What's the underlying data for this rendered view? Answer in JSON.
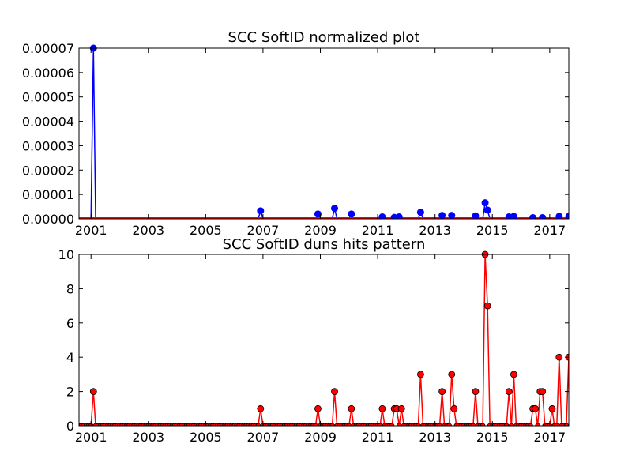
{
  "chart_data": [
    {
      "type": "line",
      "title": "SCC SoftID normalized plot",
      "xlabel": "",
      "ylabel": "",
      "x_axis": "date",
      "xlim": [
        "2000-08-01",
        "2017-09-01"
      ],
      "ylim": [
        0,
        7e-05
      ],
      "xticks": [
        "2001",
        "2003",
        "2005",
        "2007",
        "2009",
        "2011",
        "2013",
        "2015",
        "2017"
      ],
      "yticks": [
        "0.00000",
        "0.00001",
        "0.00002",
        "0.00003",
        "0.00004",
        "0.00005",
        "0.00006",
        "0.00007"
      ],
      "grid": false,
      "colors": {
        "line": "#0000ff",
        "marker": "#0000ff",
        "baseline": "#ff0000"
      },
      "series": [
        {
          "values": [
            {
              "x": "2001-02-01",
              "y": 7e-05
            },
            {
              "x": "2006-12-01",
              "y": 3.3e-06
            },
            {
              "x": "2008-12-01",
              "y": 2e-06
            },
            {
              "x": "2009-07-01",
              "y": 4.3e-06
            },
            {
              "x": "2010-02-01",
              "y": 2e-06
            },
            {
              "x": "2011-03-01",
              "y": 8e-07
            },
            {
              "x": "2011-08-01",
              "y": 6e-07
            },
            {
              "x": "2011-10-01",
              "y": 8e-07
            },
            {
              "x": "2012-07-01",
              "y": 2.7e-06
            },
            {
              "x": "2013-04-01",
              "y": 1.4e-06
            },
            {
              "x": "2013-08-01",
              "y": 1.4e-06
            },
            {
              "x": "2014-06-01",
              "y": 1.2e-06
            },
            {
              "x": "2014-10-01",
              "y": 6.6e-06
            },
            {
              "x": "2014-11-01",
              "y": 3.6e-06
            },
            {
              "x": "2015-08-01",
              "y": 8e-07
            },
            {
              "x": "2015-10-01",
              "y": 1e-06
            },
            {
              "x": "2016-06-01",
              "y": 5e-07
            },
            {
              "x": "2016-10-01",
              "y": 5e-07
            },
            {
              "x": "2017-05-01",
              "y": 1e-06
            },
            {
              "x": "2017-09-01",
              "y": 1e-06
            }
          ]
        }
      ]
    },
    {
      "type": "line",
      "title": "SCC SoftID duns hits pattern",
      "xlabel": "",
      "ylabel": "",
      "x_axis": "date",
      "xlim": [
        "2000-08-01",
        "2017-09-01"
      ],
      "ylim": [
        0,
        10
      ],
      "xticks": [
        "2001",
        "2003",
        "2005",
        "2007",
        "2009",
        "2011",
        "2013",
        "2015",
        "2017"
      ],
      "yticks": [
        "0",
        "2",
        "4",
        "6",
        "8",
        "10"
      ],
      "grid": false,
      "colors": {
        "line": "#ff0000",
        "marker": "#ff0000"
      },
      "series": [
        {
          "values": [
            {
              "x": "2001-02-01",
              "y": 2
            },
            {
              "x": "2006-12-01",
              "y": 1
            },
            {
              "x": "2008-12-01",
              "y": 1
            },
            {
              "x": "2009-07-01",
              "y": 2
            },
            {
              "x": "2010-02-01",
              "y": 1
            },
            {
              "x": "2011-03-01",
              "y": 1
            },
            {
              "x": "2011-08-01",
              "y": 1
            },
            {
              "x": "2011-09-01",
              "y": 1
            },
            {
              "x": "2011-11-01",
              "y": 1
            },
            {
              "x": "2012-07-01",
              "y": 3
            },
            {
              "x": "2013-04-01",
              "y": 2
            },
            {
              "x": "2013-08-01",
              "y": 3
            },
            {
              "x": "2013-09-01",
              "y": 1
            },
            {
              "x": "2014-06-01",
              "y": 2
            },
            {
              "x": "2014-10-01",
              "y": 10
            },
            {
              "x": "2014-11-01",
              "y": 7
            },
            {
              "x": "2015-08-01",
              "y": 2
            },
            {
              "x": "2015-10-01",
              "y": 3
            },
            {
              "x": "2016-06-01",
              "y": 1
            },
            {
              "x": "2016-07-01",
              "y": 1
            },
            {
              "x": "2016-09-01",
              "y": 2
            },
            {
              "x": "2016-10-01",
              "y": 2
            },
            {
              "x": "2017-02-01",
              "y": 1
            },
            {
              "x": "2017-05-01",
              "y": 4
            },
            {
              "x": "2017-09-01",
              "y": 4
            }
          ]
        }
      ]
    }
  ]
}
